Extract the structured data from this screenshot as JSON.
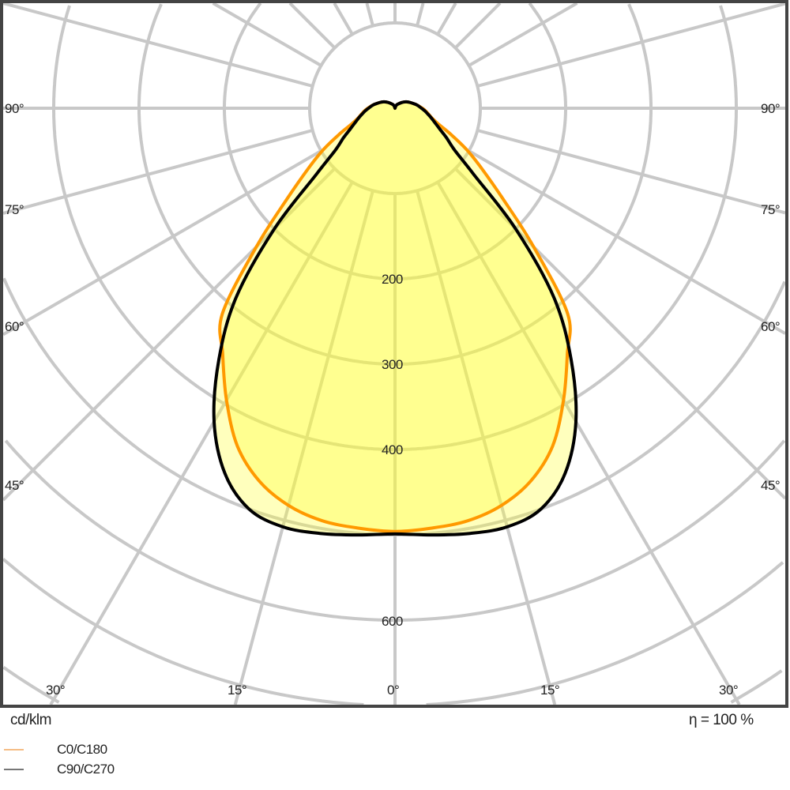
{
  "chart_data": {
    "type": "line",
    "projection": "polar",
    "unit_label": "cd/klm",
    "efficiency_label": "η = 100 %",
    "radial_ticks": [
      100,
      200,
      300,
      400,
      500,
      600,
      700,
      800,
      900
    ],
    "radial_tick_labels": [
      "200",
      "300",
      "400",
      "600"
    ],
    "angle_step_deg": 15,
    "angle_labels_bottom": [
      "30°",
      "15°",
      "0°",
      "15°",
      "30°"
    ],
    "angle_labels_side": [
      "90°",
      "75°",
      "60°",
      "45°"
    ],
    "grid": true,
    "legend_position": "bottom-left",
    "angles_deg": [
      0,
      5,
      10,
      15,
      20,
      25,
      30,
      35,
      40,
      45,
      50,
      55,
      60,
      65,
      70,
      75,
      80,
      85,
      90,
      100,
      120,
      150,
      180
    ],
    "series": [
      {
        "name": "C0/C180",
        "color": "#ff9900",
        "legend_color": "#f5bd85",
        "values": [
          496,
          494,
          491,
          482,
          465,
          437,
          395,
          352,
          315,
          230,
          165,
          125,
          97,
          72,
          54,
          45,
          40,
          36,
          32,
          25,
          15,
          5,
          0
        ]
      },
      {
        "name": "C90/C270",
        "color": "#000000",
        "legend_color": "#777777",
        "values": [
          499,
          502,
          506,
          508,
          500,
          472,
          424,
          360,
          290,
          200,
          120,
          85,
          70,
          58,
          50,
          44,
          39,
          35,
          31,
          25,
          15,
          5,
          0
        ]
      }
    ],
    "fill_color": "#ffff33",
    "grid_color": "#c8c8c8",
    "frame_color": "#444444"
  }
}
